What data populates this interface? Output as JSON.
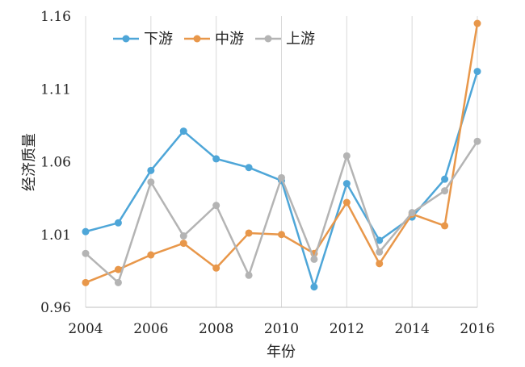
{
  "chart_data": {
    "type": "line",
    "title": "",
    "xlabel": "年份",
    "ylabel": "经济质量",
    "x": [
      2004,
      2005,
      2006,
      2007,
      2008,
      2009,
      2010,
      2011,
      2012,
      2013,
      2014,
      2015,
      2016
    ],
    "xlim": [
      2004,
      2016
    ],
    "ylim": [
      0.96,
      1.16
    ],
    "xticks": [
      "2004",
      "2006",
      "2008",
      "2010",
      "2012",
      "2014",
      "2016"
    ],
    "yticks": [
      "0.96",
      "1.01",
      "1.06",
      "1.11",
      "1.16"
    ],
    "grid": "vertical",
    "legend": "top-left",
    "series": [
      {
        "name": "下游",
        "color": "#4ea6d8",
        "values": [
          1.012,
          1.018,
          1.054,
          1.081,
          1.062,
          1.056,
          1.047,
          0.974,
          1.045,
          1.006,
          1.022,
          1.048,
          1.122
        ]
      },
      {
        "name": "中游",
        "color": "#e8974a",
        "values": [
          0.977,
          0.986,
          0.996,
          1.004,
          0.987,
          1.011,
          1.01,
          0.997,
          1.032,
          0.99,
          1.024,
          1.016,
          1.155
        ]
      },
      {
        "name": "上游",
        "color": "#b4b4b4",
        "values": [
          0.997,
          0.977,
          1.046,
          1.009,
          1.03,
          0.982,
          1.049,
          0.993,
          1.064,
          0.998,
          1.025,
          1.04,
          1.074
        ]
      }
    ]
  }
}
